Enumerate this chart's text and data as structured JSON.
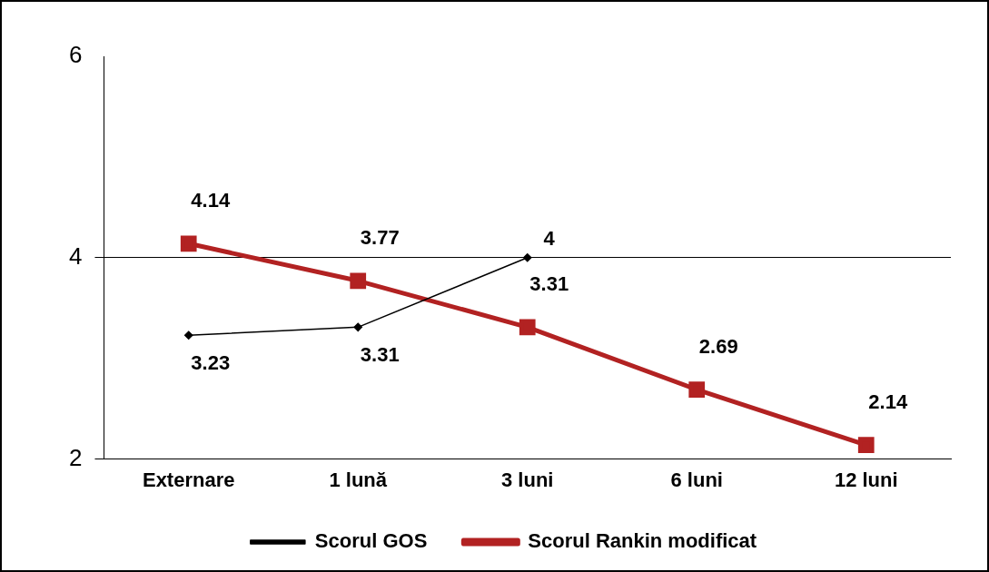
{
  "chart_data": {
    "type": "line",
    "categories": [
      "Externare",
      "1 lună",
      "3 luni",
      "6 luni",
      "12 luni"
    ],
    "series": [
      {
        "name": "Scorul GOS",
        "color": "#000000",
        "marker": "diamond",
        "values": [
          3.23,
          3.31,
          4,
          null,
          null
        ]
      },
      {
        "name": "Scorul Rankin modificat",
        "color": "#b22222",
        "marker": "square",
        "values": [
          4.14,
          3.77,
          3.31,
          2.69,
          2.14
        ]
      }
    ],
    "ylim": [
      2,
      6
    ],
    "yticks": [
      2,
      4,
      6
    ],
    "grid": "y",
    "legend": "bottom",
    "data_labels": true
  }
}
